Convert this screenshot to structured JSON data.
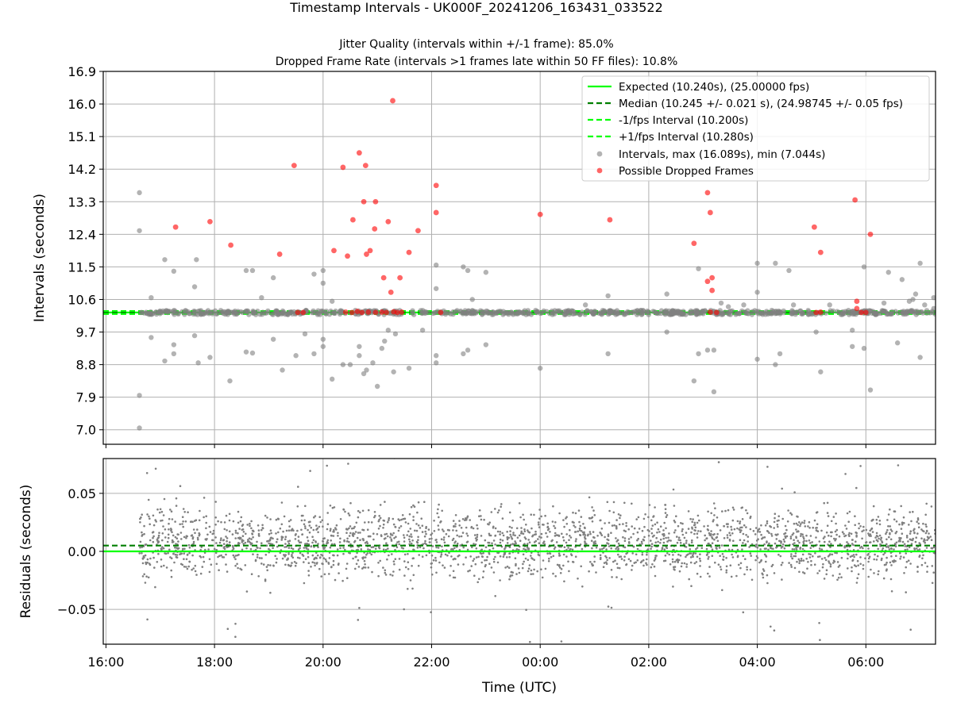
{
  "chart_data": [
    {
      "type": "scatter",
      "title": "Timestamp Intervals - UK000F_20241206_163431_033522",
      "subtitle_lines": [
        "Jitter Quality (intervals within +/-1 frame): 85.0%",
        "Dropped Frame Rate (intervals >1 frames late within 50 FF files): 10.8%"
      ],
      "xlabel": "",
      "ylabel": "Intervals (seconds)",
      "xlim": [
        "2024-12-06 15:57",
        "2024-12-07 07:17"
      ],
      "ylim": [
        6.6,
        16.9
      ],
      "yticks": [
        "16.9",
        "16.0",
        "15.1",
        "14.2",
        "13.3",
        "12.4",
        "11.5",
        "10.6",
        "9.7",
        "8.8",
        "7.9",
        "7.0"
      ],
      "grid": true,
      "legend_position": "top-right",
      "lines": [
        {
          "name": "Expected (10.240s), (25.00000 fps)",
          "y": 10.24,
          "color": "#00ff00",
          "style": "solid"
        },
        {
          "name": "Median (10.245 +/- 0.021 s), (24.98745 +/- 0.05 fps)",
          "y": 10.245,
          "color": "#007f00",
          "style": "dashed"
        },
        {
          "name": "-1/fps Interval (10.200s)",
          "y": 10.2,
          "color": "#00ff00",
          "style": "dashed"
        },
        {
          "name": "+1/fps Interval (10.280s)",
          "y": 10.28,
          "color": "#00ff00",
          "style": "dashed"
        }
      ],
      "series": [
        {
          "name": "Intervals, max (16.089s), min (7.044s)",
          "color": "#808080",
          "points": [
            [
              "2024-12-06 16:37",
              13.55
            ],
            [
              "2024-12-06 16:37",
              12.5
            ],
            [
              "2024-12-06 16:37",
              7.95
            ],
            [
              "2024-12-06 16:37",
              7.05
            ],
            [
              "2024-12-06 16:50",
              10.65
            ],
            [
              "2024-12-06 16:50",
              9.55
            ],
            [
              "2024-12-06 17:05",
              11.7
            ],
            [
              "2024-12-06 17:05",
              8.9
            ],
            [
              "2024-12-06 17:15",
              11.38
            ],
            [
              "2024-12-06 17:15",
              9.35
            ],
            [
              "2024-12-06 17:15",
              9.1
            ],
            [
              "2024-12-06 17:40",
              11.7
            ],
            [
              "2024-12-06 17:38",
              10.95
            ],
            [
              "2024-12-06 17:38",
              9.6
            ],
            [
              "2024-12-06 17:42",
              8.85
            ],
            [
              "2024-12-06 17:55",
              9.0
            ],
            [
              "2024-12-06 18:17",
              8.35
            ],
            [
              "2024-12-06 18:35",
              11.4
            ],
            [
              "2024-12-06 18:42",
              11.4
            ],
            [
              "2024-12-06 18:35",
              9.15
            ],
            [
              "2024-12-06 18:42",
              9.12
            ],
            [
              "2024-12-06 18:52",
              10.65
            ],
            [
              "2024-12-06 19:05",
              11.2
            ],
            [
              "2024-12-06 19:05",
              9.5
            ],
            [
              "2024-12-06 19:15",
              8.65
            ],
            [
              "2024-12-06 19:30",
              9.05
            ],
            [
              "2024-12-06 19:40",
              9.65
            ],
            [
              "2024-12-06 19:50",
              11.3
            ],
            [
              "2024-12-06 19:50",
              9.1
            ],
            [
              "2024-12-06 20:00",
              11.05
            ],
            [
              "2024-12-06 20:00",
              11.4
            ],
            [
              "2024-12-06 20:00",
              9.5
            ],
            [
              "2024-12-06 20:00",
              9.3
            ],
            [
              "2024-12-06 20:10",
              10.55
            ],
            [
              "2024-12-06 20:10",
              8.4
            ],
            [
              "2024-12-06 20:22",
              8.8
            ],
            [
              "2024-12-06 20:30",
              8.8
            ],
            [
              "2024-12-06 20:40",
              9.05
            ],
            [
              "2024-12-06 20:40",
              9.3
            ],
            [
              "2024-12-06 20:45",
              8.55
            ],
            [
              "2024-12-06 20:48",
              8.65
            ],
            [
              "2024-12-06 20:55",
              8.85
            ],
            [
              "2024-12-06 21:00",
              8.2
            ],
            [
              "2024-12-06 21:05",
              9.25
            ],
            [
              "2024-12-06 21:08",
              9.45
            ],
            [
              "2024-12-06 21:12",
              9.75
            ],
            [
              "2024-12-06 21:18",
              8.6
            ],
            [
              "2024-12-06 21:20",
              9.65
            ],
            [
              "2024-12-06 21:35",
              8.7
            ],
            [
              "2024-12-06 21:50",
              9.75
            ],
            [
              "2024-12-06 22:05",
              11.55
            ],
            [
              "2024-12-06 22:05",
              10.9
            ],
            [
              "2024-12-06 22:05",
              9.05
            ],
            [
              "2024-12-06 22:05",
              8.85
            ],
            [
              "2024-12-06 22:35",
              11.5
            ],
            [
              "2024-12-06 22:40",
              11.4
            ],
            [
              "2024-12-06 22:35",
              9.1
            ],
            [
              "2024-12-06 22:40",
              9.2
            ],
            [
              "2024-12-06 23:00",
              11.35
            ],
            [
              "2024-12-06 23:00",
              9.35
            ],
            [
              "2024-12-06 22:45",
              10.6
            ],
            [
              "2024-12-07 00:00",
              8.7
            ],
            [
              "2024-12-07 00:50",
              10.45
            ],
            [
              "2024-12-07 01:15",
              10.7
            ],
            [
              "2024-12-07 01:15",
              9.1
            ],
            [
              "2024-12-07 02:20",
              10.75
            ],
            [
              "2024-12-07 02:20",
              9.7
            ],
            [
              "2024-12-07 02:50",
              8.35
            ],
            [
              "2024-12-07 02:55",
              11.45
            ],
            [
              "2024-12-07 02:55",
              9.1
            ],
            [
              "2024-12-07 03:05",
              9.2
            ],
            [
              "2024-12-07 03:12",
              9.2
            ],
            [
              "2024-12-07 03:12",
              8.05
            ],
            [
              "2024-12-07 03:20",
              10.5
            ],
            [
              "2024-12-07 03:45",
              10.45
            ],
            [
              "2024-12-07 04:00",
              11.6
            ],
            [
              "2024-12-07 04:00",
              10.8
            ],
            [
              "2024-12-07 04:00",
              8.95
            ],
            [
              "2024-12-07 04:20",
              11.6
            ],
            [
              "2024-12-07 04:20",
              8.8
            ],
            [
              "2024-12-07 04:25",
              9.1
            ],
            [
              "2024-12-07 04:35",
              11.4
            ],
            [
              "2024-12-07 04:40",
              10.45
            ],
            [
              "2024-12-07 05:05",
              9.7
            ],
            [
              "2024-12-07 05:10",
              8.6
            ],
            [
              "2024-12-07 05:20",
              10.45
            ],
            [
              "2024-12-07 05:45",
              9.3
            ],
            [
              "2024-12-07 05:45",
              9.75
            ],
            [
              "2024-12-07 05:58",
              11.5
            ],
            [
              "2024-12-07 05:58",
              9.25
            ],
            [
              "2024-12-07 06:05",
              8.1
            ],
            [
              "2024-12-07 06:20",
              10.5
            ],
            [
              "2024-12-07 06:25",
              11.35
            ],
            [
              "2024-12-07 06:35",
              9.4
            ],
            [
              "2024-12-07 06:40",
              11.15
            ],
            [
              "2024-12-07 06:48",
              10.55
            ],
            [
              "2024-12-07 06:52",
              10.6
            ],
            [
              "2024-12-07 07:00",
              11.6
            ],
            [
              "2024-12-07 07:00",
              9.0
            ],
            [
              "2024-12-07 07:05",
              10.45
            ],
            [
              "2024-12-07 07:15",
              10.65
            ],
            [
              "2024-12-07 07:15",
              10.35
            ],
            [
              "2024-12-07 06:55",
              10.75
            ],
            [
              "2024-12-07 03:28",
              10.4
            ]
          ]
        },
        {
          "name": "Possible Dropped Frames",
          "color": "#ff0000",
          "points": [
            [
              "2024-12-06 17:17",
              12.6
            ],
            [
              "2024-12-06 17:55",
              12.75
            ],
            [
              "2024-12-06 18:18",
              12.1
            ],
            [
              "2024-12-06 19:12",
              11.85
            ],
            [
              "2024-12-06 19:28",
              14.3
            ],
            [
              "2024-12-06 20:12",
              11.95
            ],
            [
              "2024-12-06 20:22",
              14.25
            ],
            [
              "2024-12-06 20:27",
              11.8
            ],
            [
              "2024-12-06 20:33",
              12.8
            ],
            [
              "2024-12-06 20:40",
              14.65
            ],
            [
              "2024-12-06 20:45",
              13.3
            ],
            [
              "2024-12-06 20:47",
              14.3
            ],
            [
              "2024-12-06 20:48",
              11.85
            ],
            [
              "2024-12-06 20:52",
              11.95
            ],
            [
              "2024-12-06 20:57",
              12.55
            ],
            [
              "2024-12-06 20:58",
              13.3
            ],
            [
              "2024-12-06 21:07",
              11.2
            ],
            [
              "2024-12-06 21:12",
              12.75
            ],
            [
              "2024-12-06 21:15",
              10.8
            ],
            [
              "2024-12-06 21:17",
              16.09
            ],
            [
              "2024-12-06 21:25",
              11.2
            ],
            [
              "2024-12-06 21:35",
              11.9
            ],
            [
              "2024-12-06 21:45",
              12.5
            ],
            [
              "2024-12-06 22:05",
              13.75
            ],
            [
              "2024-12-06 22:05",
              13.0
            ],
            [
              "2024-12-07 00:00",
              12.95
            ],
            [
              "2024-12-07 01:17",
              12.8
            ],
            [
              "2024-12-07 02:50",
              12.15
            ],
            [
              "2024-12-07 03:05",
              13.55
            ],
            [
              "2024-12-07 03:08",
              13.0
            ],
            [
              "2024-12-07 03:05",
              11.1
            ],
            [
              "2024-12-07 03:10",
              11.2
            ],
            [
              "2024-12-07 03:10",
              10.85
            ],
            [
              "2024-12-07 05:03",
              12.6
            ],
            [
              "2024-12-07 05:10",
              11.9
            ],
            [
              "2024-12-07 05:48",
              13.35
            ],
            [
              "2024-12-07 05:50",
              10.55
            ],
            [
              "2024-12-07 06:05",
              12.4
            ],
            [
              "2024-12-07 05:50",
              10.35
            ],
            [
              "2024-12-06 19:32",
              10.24
            ],
            [
              "2024-12-06 19:38",
              10.24
            ],
            [
              "2024-12-06 20:25",
              10.25
            ],
            [
              "2024-12-06 20:32",
              10.24
            ],
            [
              "2024-12-06 20:38",
              10.27
            ],
            [
              "2024-12-06 20:43",
              10.24
            ],
            [
              "2024-12-06 20:50",
              10.25
            ],
            [
              "2024-12-06 20:58",
              10.24
            ],
            [
              "2024-12-06 21:05",
              10.25
            ],
            [
              "2024-12-06 21:10",
              10.24
            ],
            [
              "2024-12-06 21:18",
              10.26
            ],
            [
              "2024-12-06 21:22",
              10.24
            ],
            [
              "2024-12-06 21:27",
              10.25
            ],
            [
              "2024-12-06 22:10",
              10.24
            ],
            [
              "2024-12-07 03:08",
              10.25
            ],
            [
              "2024-12-07 03:15",
              10.24
            ],
            [
              "2024-12-07 05:05",
              10.24
            ],
            [
              "2024-12-07 05:10",
              10.25
            ],
            [
              "2024-12-07 05:55",
              10.24
            ],
            [
              "2024-12-07 06:00",
              10.24
            ]
          ]
        }
      ]
    },
    {
      "type": "scatter",
      "xlabel": "Time (UTC)",
      "ylabel": "Residuals (seconds)",
      "xlim": [
        "2024-12-06 15:57",
        "2024-12-07 07:17"
      ],
      "ylim": [
        -0.08,
        0.08
      ],
      "yticks": [
        "0.05",
        "0.00",
        "−0.05"
      ],
      "xticks": [
        "16:00",
        "18:00",
        "20:00",
        "22:00",
        "00:00",
        "02:00",
        "04:00",
        "06:00"
      ],
      "grid": true,
      "lines": [
        {
          "y": 0.0,
          "color": "#00ff00",
          "style": "solid"
        },
        {
          "y": 0.005,
          "color": "#007f00",
          "style": "dashed"
        }
      ],
      "series": [
        {
          "color": "#808080",
          "x_range": [
            "2024-12-06 16:37",
            "2024-12-07 07:17"
          ],
          "y_range": [
            -0.08,
            0.08
          ],
          "typical_spread": [
            -0.035,
            0.05
          ],
          "point_count": 2600
        }
      ]
    }
  ]
}
